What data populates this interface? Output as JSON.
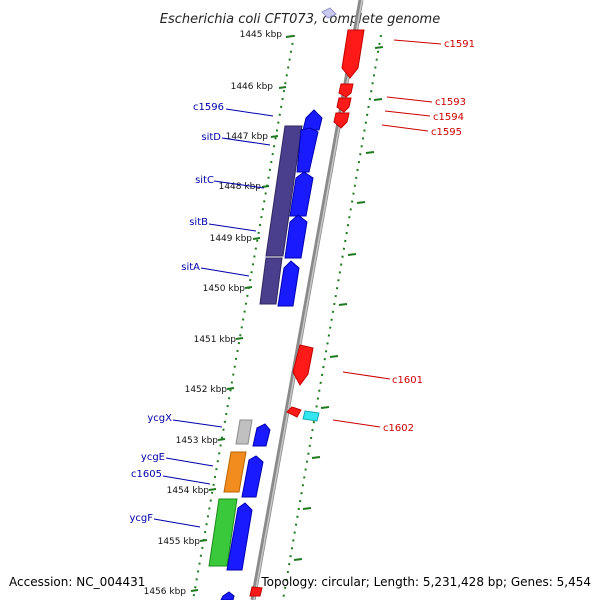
{
  "title": "Escherichia coli CFT073, complete genome",
  "footer": {
    "accession": "Accession: NC_004431",
    "topology": "Topology: circular; Length: 5,231,428 bp; Genes: 5,454"
  },
  "colors": {
    "forward": "#1a1aff",
    "reverse": "#ff1a1a",
    "cds_dark": "#4a3f8c",
    "orange": "#f28c1e",
    "green": "#3ac93a",
    "gray": "#c0c0c0",
    "cyan": "#33e6f0",
    "forward_label": "#0000aa",
    "reverse_label": "#cc0000",
    "scale_dash": "#1f7a1f"
  },
  "scale": [
    "1445 kbp",
    "1446 kbp",
    "1447 kbp",
    "1448 kbp",
    "1449 kbp",
    "1450 kbp",
    "1451 kbp",
    "1452 kbp",
    "1453 kbp",
    "1454 kbp",
    "1455 kbp",
    "1456 kbp"
  ],
  "forward_labels": [
    "c1596",
    "sitD",
    "sitC",
    "sitB",
    "sitA",
    "ycgX",
    "ycgE",
    "c1605",
    "ycgF"
  ],
  "reverse_labels": [
    "c1591",
    "c1593",
    "c1594",
    "c1595",
    "c1601",
    "c1602"
  ]
}
